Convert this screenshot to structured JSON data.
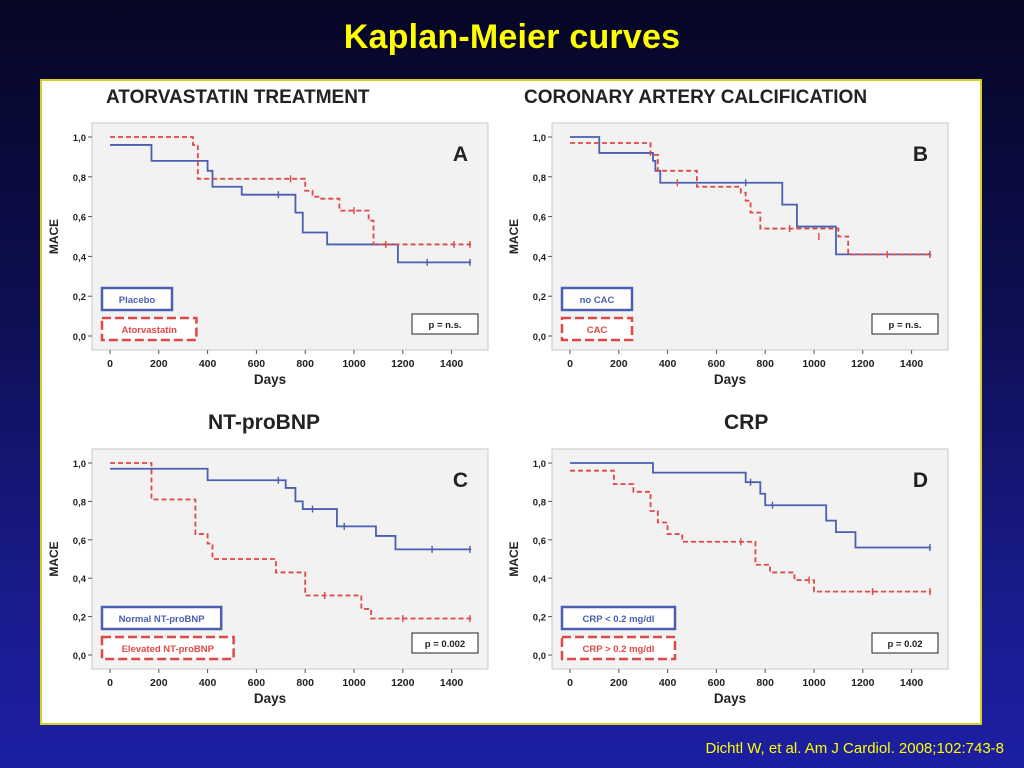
{
  "slide": {
    "title": "Kaplan-Meier curves",
    "citation": "Dichtl W, et al. Am J Cardiol. 2008;102:743-8"
  },
  "colors": {
    "group1": "#4a5fb0",
    "group2": "#e04848",
    "title": "#ffff00",
    "plot_bg": "#f2f2f2"
  },
  "chart_data": [
    {
      "type": "line",
      "heading": "ATORVASTATIN TREATMENT",
      "panel_letter": "A",
      "xlabel": "Days",
      "ylabel": "MACE",
      "xlim": [
        0,
        1500
      ],
      "ylim": [
        0,
        1
      ],
      "xticks": [
        0,
        200,
        400,
        600,
        800,
        1000,
        1200,
        1400
      ],
      "yticks": [
        "0,0",
        "0,2",
        "0,4",
        "0,6",
        "0,8",
        "1,0"
      ],
      "p_value": "p = n.s.",
      "series": [
        {
          "name": "Placebo",
          "style": "solid",
          "x": [
            0,
            120,
            170,
            400,
            420,
            540,
            710,
            760,
            790,
            880,
            890,
            1180,
            1480
          ],
          "y": [
            0.96,
            0.96,
            0.88,
            0.83,
            0.75,
            0.71,
            0.71,
            0.62,
            0.52,
            0.52,
            0.46,
            0.37,
            0.37
          ],
          "censored": [
            [
              690,
              0.71
            ],
            [
              1300,
              0.37
            ],
            [
              1475,
              0.37
            ]
          ]
        },
        {
          "name": "Atorvastatin",
          "style": "dashed",
          "x": [
            0,
            100,
            340,
            360,
            630,
            800,
            830,
            860,
            940,
            1060,
            1080,
            1480
          ],
          "y": [
            1.0,
            1.0,
            0.96,
            0.79,
            0.79,
            0.73,
            0.7,
            0.69,
            0.63,
            0.58,
            0.46,
            0.46
          ],
          "censored": [
            [
              740,
              0.79
            ],
            [
              1000,
              0.63
            ],
            [
              1130,
              0.46
            ],
            [
              1410,
              0.46
            ],
            [
              1475,
              0.46
            ]
          ]
        }
      ]
    },
    {
      "type": "line",
      "heading": "CORONARY ARTERY CALCIFICATION",
      "panel_letter": "B",
      "xlabel": "Days",
      "ylabel": "MACE",
      "xlim": [
        0,
        1500
      ],
      "ylim": [
        0,
        1
      ],
      "xticks": [
        0,
        200,
        400,
        600,
        800,
        1000,
        1200,
        1400
      ],
      "yticks": [
        "0,0",
        "0,2",
        "0,4",
        "0,6",
        "0,8",
        "1,0"
      ],
      "p_value": "p = n.s.",
      "series": [
        {
          "name": "no CAC",
          "style": "solid",
          "x": [
            0,
            110,
            120,
            340,
            350,
            370,
            830,
            870,
            930,
            1070,
            1090,
            1480
          ],
          "y": [
            1.0,
            1.0,
            0.92,
            0.88,
            0.83,
            0.77,
            0.77,
            0.66,
            0.55,
            0.55,
            0.41,
            0.41
          ],
          "censored": [
            [
              720,
              0.77
            ],
            [
              1475,
              0.41
            ]
          ]
        },
        {
          "name": "CAC",
          "style": "dashed",
          "x": [
            0,
            130,
            330,
            360,
            520,
            700,
            720,
            740,
            780,
            1100,
            1140,
            1480
          ],
          "y": [
            0.97,
            0.97,
            0.91,
            0.83,
            0.75,
            0.72,
            0.68,
            0.62,
            0.54,
            0.5,
            0.41,
            0.41
          ],
          "censored": [
            [
              440,
              0.77
            ],
            [
              900,
              0.54
            ],
            [
              1020,
              0.5
            ],
            [
              1300,
              0.41
            ],
            [
              1475,
              0.41
            ]
          ]
        }
      ]
    },
    {
      "type": "line",
      "heading": "NT-proBNP",
      "panel_letter": "C",
      "xlabel": "Days",
      "ylabel": "MACE",
      "xlim": [
        0,
        1500
      ],
      "ylim": [
        0,
        1
      ],
      "xticks": [
        0,
        200,
        400,
        600,
        800,
        1000,
        1200,
        1400
      ],
      "yticks": [
        "0,0",
        "0,2",
        "0,4",
        "0,6",
        "0,8",
        "1,0"
      ],
      "p_value": "p = 0.002",
      "series": [
        {
          "name": "Normal NT-proBNP",
          "style": "solid",
          "x": [
            0,
            330,
            400,
            700,
            720,
            760,
            790,
            930,
            1090,
            1170,
            1480
          ],
          "y": [
            0.97,
            0.97,
            0.91,
            0.91,
            0.87,
            0.8,
            0.76,
            0.67,
            0.62,
            0.55,
            0.55
          ],
          "censored": [
            [
              690,
              0.91
            ],
            [
              830,
              0.76
            ],
            [
              960,
              0.67
            ],
            [
              1320,
              0.55
            ],
            [
              1475,
              0.55
            ]
          ]
        },
        {
          "name": "Elevated NT-proBNP",
          "style": "dashed",
          "x": [
            0,
            120,
            170,
            330,
            350,
            400,
            420,
            680,
            800,
            1030,
            1070,
            1480
          ],
          "y": [
            1.0,
            1.0,
            0.81,
            0.81,
            0.63,
            0.58,
            0.5,
            0.43,
            0.31,
            0.24,
            0.19,
            0.19
          ],
          "censored": [
            [
              880,
              0.31
            ],
            [
              1200,
              0.19
            ],
            [
              1475,
              0.19
            ]
          ]
        }
      ]
    },
    {
      "type": "line",
      "heading": "CRP",
      "panel_letter": "D",
      "xlabel": "Days",
      "ylabel": "MACE",
      "xlim": [
        0,
        1500
      ],
      "ylim": [
        0,
        1
      ],
      "xticks": [
        0,
        200,
        400,
        600,
        800,
        1000,
        1200,
        1400
      ],
      "yticks": [
        "0,0",
        "0,2",
        "0,4",
        "0,6",
        "0,8",
        "1,0"
      ],
      "p_value": "p = 0.02",
      "series": [
        {
          "name": "CRP < 0.2 mg/dl",
          "style": "solid",
          "x": [
            0,
            320,
            340,
            700,
            720,
            780,
            800,
            810,
            1050,
            1090,
            1170,
            1480
          ],
          "y": [
            1.0,
            1.0,
            0.95,
            0.95,
            0.9,
            0.84,
            0.78,
            0.78,
            0.7,
            0.64,
            0.56,
            0.56
          ],
          "censored": [
            [
              740,
              0.9
            ],
            [
              830,
              0.78
            ],
            [
              1475,
              0.56
            ]
          ]
        },
        {
          "name": "CRP > 0.2 mg/dl",
          "style": "dashed",
          "x": [
            0,
            120,
            180,
            260,
            330,
            360,
            400,
            460,
            720,
            760,
            820,
            920,
            1000,
            1100,
            1480
          ],
          "y": [
            0.96,
            0.96,
            0.89,
            0.85,
            0.75,
            0.69,
            0.63,
            0.59,
            0.59,
            0.47,
            0.43,
            0.39,
            0.33,
            0.33,
            0.33
          ],
          "censored": [
            [
              700,
              0.59
            ],
            [
              980,
              0.39
            ],
            [
              1240,
              0.33
            ],
            [
              1475,
              0.33
            ]
          ]
        }
      ]
    }
  ]
}
